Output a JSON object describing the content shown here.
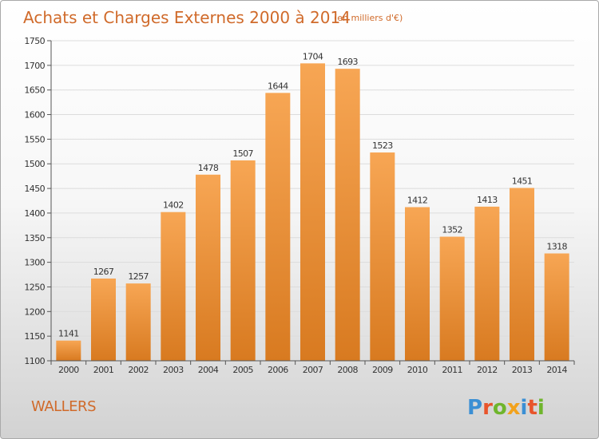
{
  "title": "Achats et Charges Externes 2000 à 2014",
  "subtitle": "(en milliers d'€)",
  "place_name": "WALLERS",
  "logo": {
    "letters": [
      {
        "char": "P",
        "color": "#3b8fd4"
      },
      {
        "char": "r",
        "color": "#e8542b"
      },
      {
        "char": "o",
        "color": "#6fb52c"
      },
      {
        "char": "x",
        "color": "#f2a21c"
      },
      {
        "char": "i",
        "color": "#3b8fd4"
      },
      {
        "char": "t",
        "color": "#e8542b"
      },
      {
        "char": "i",
        "color": "#6fb52c"
      }
    ]
  },
  "colors": {
    "bar_light": "#f7a654",
    "bar_dark": "#d87a20",
    "grid": "#dcdcdc",
    "axis": "#555555",
    "accent": "#d06a2a"
  },
  "chart_data": {
    "type": "bar",
    "title": "Achats et Charges Externes 2000 à 2014",
    "subtitle": "(en milliers d'€)",
    "categories": [
      "2000",
      "2001",
      "2002",
      "2003",
      "2004",
      "2005",
      "2006",
      "2007",
      "2008",
      "2009",
      "2010",
      "2011",
      "2012",
      "2013",
      "2014"
    ],
    "values": [
      1141,
      1267,
      1257,
      1402,
      1478,
      1507,
      1644,
      1704,
      1693,
      1523,
      1412,
      1352,
      1413,
      1451,
      1318
    ],
    "ylim": [
      1100,
      1750
    ],
    "yticks": [
      1100,
      1150,
      1200,
      1250,
      1300,
      1350,
      1400,
      1450,
      1500,
      1550,
      1600,
      1650,
      1700,
      1750
    ],
    "grid": true,
    "data_labels": true,
    "xlabel": "",
    "ylabel": ""
  }
}
